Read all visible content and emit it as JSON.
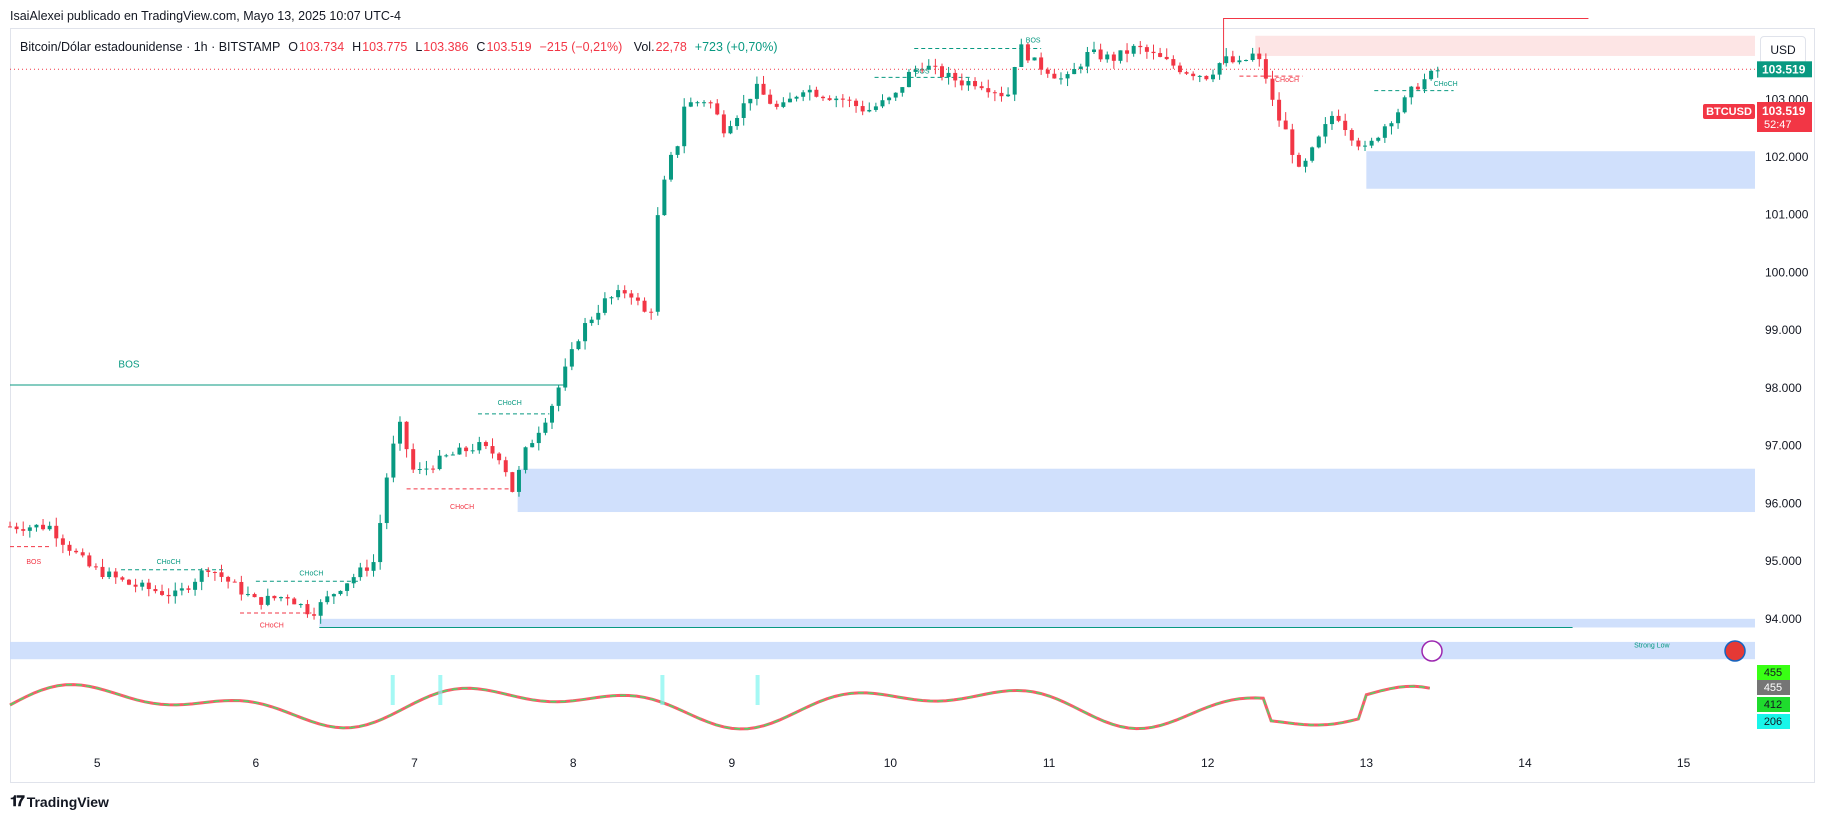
{
  "header": {
    "credit": "IsaiAlexei publicado en TradingView.com, Mayo 13, 2025 10:07 UTC-4"
  },
  "legend": {
    "symbol": "Bitcoin/Dólar estadounidense · 1h · BITSTAMP",
    "open_label": "O",
    "open": "103.734",
    "high_label": "H",
    "high": "103.775",
    "low_label": "L",
    "low": "103.386",
    "close_label": "C",
    "close": "103.519",
    "change": "−215 (−0,21%)",
    "vol_label": "Vol.",
    "vol": "22,78",
    "vol_change": "+723 (+0,70%)"
  },
  "currency": "USD",
  "price_tags": {
    "symbol_tag": "BTCUSD",
    "last_price": "103.519",
    "countdown": "52:47",
    "current_price": "103.519"
  },
  "oscillator_tags": [
    "455",
    "455",
    "412",
    "206"
  ],
  "footer": {
    "brand": "TradingView"
  },
  "colors": {
    "up": "#089981",
    "down": "#f23645",
    "zone_blue": "#c8dafb",
    "zone_red": "#fde0e0"
  },
  "chart_data": {
    "type": "candlestick",
    "y_ticks": [
      "94.000",
      "95.000",
      "96.000",
      "97.000",
      "98.000",
      "99.000",
      "100.000",
      "101.000",
      "102.000",
      "103.000"
    ],
    "ylim": [
      93.2,
      104.2
    ],
    "x_ticks": [
      "5",
      "6",
      "7",
      "8",
      "9",
      "10",
      "11",
      "12",
      "13",
      "14",
      "15"
    ],
    "x_domain": [
      4.45,
      15.45
    ],
    "close_path": [
      [
        4.45,
        95.6
      ],
      [
        4.7,
        95.6
      ],
      [
        4.8,
        95.3
      ],
      [
        4.95,
        94.9
      ],
      [
        5.2,
        94.6
      ],
      [
        5.5,
        94.4
      ],
      [
        5.7,
        94.9
      ],
      [
        5.85,
        94.6
      ],
      [
        6.0,
        94.3
      ],
      [
        6.2,
        94.4
      ],
      [
        6.35,
        94.1
      ],
      [
        6.55,
        94.6
      ],
      [
        6.75,
        95.0
      ],
      [
        6.82,
        96.4
      ],
      [
        6.9,
        97.4
      ],
      [
        7.0,
        96.5
      ],
      [
        7.2,
        96.8
      ],
      [
        7.4,
        97.0
      ],
      [
        7.55,
        96.8
      ],
      [
        7.62,
        96.2
      ],
      [
        7.7,
        96.9
      ],
      [
        7.85,
        97.6
      ],
      [
        7.95,
        98.3
      ],
      [
        8.05,
        99.0
      ],
      [
        8.2,
        99.5
      ],
      [
        8.35,
        99.7
      ],
      [
        8.45,
        99.3
      ],
      [
        8.5,
        99.4
      ],
      [
        8.53,
        100.9
      ],
      [
        8.6,
        101.9
      ],
      [
        8.65,
        102.1
      ],
      [
        8.7,
        102.9
      ],
      [
        8.85,
        103.0
      ],
      [
        8.95,
        102.5
      ],
      [
        9.05,
        102.8
      ],
      [
        9.15,
        103.2
      ],
      [
        9.3,
        102.8
      ],
      [
        9.45,
        103.2
      ],
      [
        9.55,
        103.1
      ],
      [
        9.7,
        103.0
      ],
      [
        9.85,
        102.8
      ],
      [
        10.0,
        103.0
      ],
      [
        10.05,
        103.1
      ],
      [
        10.1,
        103.4
      ],
      [
        10.2,
        103.6
      ],
      [
        10.35,
        103.4
      ],
      [
        10.45,
        103.3
      ],
      [
        10.55,
        103.3
      ],
      [
        10.7,
        103.1
      ],
      [
        10.75,
        103.1
      ],
      [
        10.78,
        103.6
      ],
      [
        10.82,
        103.9
      ],
      [
        10.92,
        103.6
      ],
      [
        11.0,
        103.5
      ],
      [
        11.1,
        103.3
      ],
      [
        11.25,
        103.8
      ],
      [
        11.4,
        103.7
      ],
      [
        11.55,
        103.9
      ],
      [
        11.7,
        103.7
      ],
      [
        11.85,
        103.5
      ],
      [
        12.0,
        103.4
      ],
      [
        12.1,
        103.7
      ],
      [
        12.2,
        103.6
      ],
      [
        12.3,
        103.8
      ],
      [
        12.38,
        103.3
      ],
      [
        12.42,
        102.8
      ],
      [
        12.5,
        102.4
      ],
      [
        12.58,
        101.7
      ],
      [
        12.7,
        102.3
      ],
      [
        12.8,
        102.8
      ],
      [
        12.9,
        102.4
      ],
      [
        13.0,
        102.1
      ],
      [
        13.1,
        102.5
      ],
      [
        13.2,
        102.8
      ],
      [
        13.3,
        103.2
      ],
      [
        13.45,
        103.5
      ]
    ],
    "zones": [
      {
        "x0": 12.3,
        "x1": 15.45,
        "y0": 103.75,
        "y1": 104.1,
        "color": "red"
      },
      {
        "x0": 13.0,
        "x1": 15.45,
        "y0": 101.45,
        "y1": 102.1,
        "color": "blue"
      },
      {
        "x0": 7.65,
        "x1": 15.45,
        "y0": 95.85,
        "y1": 96.6,
        "color": "blue"
      },
      {
        "x0": 4.45,
        "x1": 15.45,
        "y0": 93.3,
        "y1": 93.6,
        "color": "blue"
      },
      {
        "x0": 6.4,
        "x1": 15.45,
        "y0": 93.85,
        "y1": 94.0,
        "color": "blue"
      }
    ],
    "structure_labels": [
      {
        "text": "BOS",
        "x": 5.2,
        "y": 98.35,
        "type": "bos"
      },
      {
        "text": "CHoCH",
        "x": 7.6,
        "y": 97.7,
        "type": "choch-up"
      },
      {
        "text": "CHoCH",
        "x": 7.3,
        "y": 95.9,
        "type": "choch-down"
      },
      {
        "text": "CHoCH",
        "x": 5.45,
        "y": 94.95,
        "type": "choch-up"
      },
      {
        "text": "CHoCH",
        "x": 6.35,
        "y": 94.75,
        "type": "choch-up"
      },
      {
        "text": "CHoCH",
        "x": 6.1,
        "y": 93.85,
        "type": "choch-down"
      },
      {
        "text": "BOS",
        "x": 4.6,
        "y": 94.95,
        "type": "bos-down"
      },
      {
        "text": "BOS",
        "x": 10.9,
        "y": 103.98,
        "type": "bos"
      },
      {
        "text": "BOS",
        "x": 10.2,
        "y": 103.45,
        "type": "bos"
      },
      {
        "text": "CHoCH",
        "x": 12.5,
        "y": 103.3,
        "type": "choch-down"
      },
      {
        "text": "CHoCH",
        "x": 13.5,
        "y": 103.23,
        "type": "choch-up"
      },
      {
        "text": "Strong Low",
        "x": 14.8,
        "y": 93.5,
        "type": "strong"
      }
    ]
  }
}
